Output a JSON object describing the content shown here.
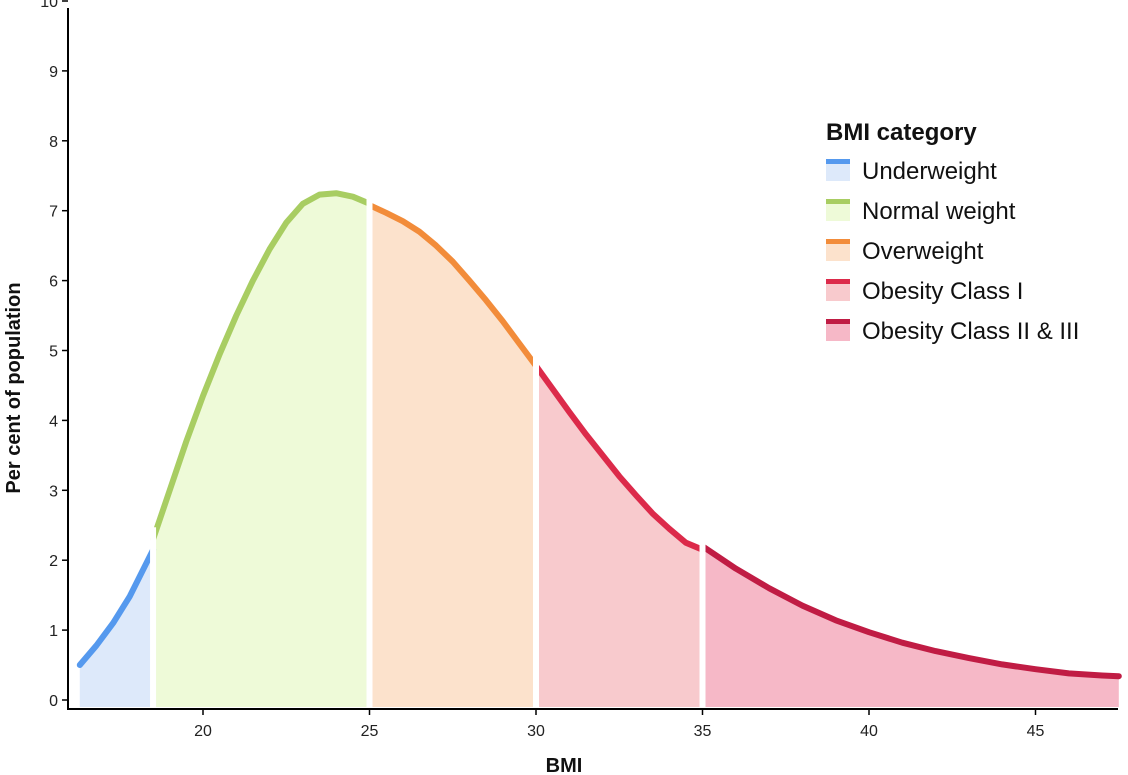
{
  "chart_data": {
    "type": "area",
    "title": "",
    "xlabel": "BMI",
    "ylabel": "Per cent of population",
    "xlim": [
      15.9,
      47.5
    ],
    "ylim": [
      0,
      10
    ],
    "xticks": [
      20,
      25,
      30,
      35,
      40,
      45
    ],
    "yticks": [
      0,
      1,
      2,
      3,
      4,
      5,
      6,
      7,
      8,
      9,
      10
    ],
    "legend_title": "BMI category",
    "legend_position": "top-right",
    "series": [
      {
        "name": "Underweight",
        "line_color": "#5599ee",
        "fill_color": "#dde9fa",
        "x": [
          16.3,
          16.8,
          17.3,
          17.8,
          18.5
        ],
        "y": [
          0.5,
          0.78,
          1.1,
          1.48,
          2.15
        ]
      },
      {
        "name": "Normal weight",
        "line_color": "#a8cd62",
        "fill_color": "#eefad8",
        "x": [
          18.5,
          19.0,
          19.5,
          20.0,
          20.5,
          21.0,
          21.5,
          22.0,
          22.5,
          23.0,
          23.5,
          24.0,
          24.5,
          25.0
        ],
        "y": [
          2.3,
          3.0,
          3.7,
          4.35,
          4.95,
          5.5,
          6.0,
          6.45,
          6.83,
          7.1,
          7.23,
          7.25,
          7.2,
          7.1
        ]
      },
      {
        "name": "Overweight",
        "line_color": "#f28c3a",
        "fill_color": "#fce2cc",
        "x": [
          25.0,
          25.5,
          26.0,
          26.5,
          27.0,
          27.5,
          28.0,
          28.5,
          29.0,
          29.5,
          30.0
        ],
        "y": [
          7.08,
          6.97,
          6.85,
          6.7,
          6.5,
          6.27,
          6.0,
          5.72,
          5.42,
          5.1,
          4.78
        ]
      },
      {
        "name": "Obesity Class I",
        "line_color": "#dc2a4a",
        "fill_color": "#f8cacd",
        "x": [
          30.0,
          30.5,
          31.0,
          31.5,
          32.0,
          32.5,
          33.0,
          33.5,
          34.0,
          34.5,
          35.0
        ],
        "y": [
          4.78,
          4.45,
          4.12,
          3.8,
          3.5,
          3.2,
          2.93,
          2.67,
          2.45,
          2.25,
          2.15
        ]
      },
      {
        "name": "Obesity Class II & III",
        "line_color": "#c01c44",
        "fill_color": "#f6b8c7",
        "x": [
          35.0,
          36.0,
          37.0,
          38.0,
          39.0,
          40.0,
          41.0,
          42.0,
          43.0,
          44.0,
          45.0,
          46.0,
          47.0,
          47.5
        ],
        "y": [
          2.2,
          1.88,
          1.6,
          1.35,
          1.14,
          0.97,
          0.82,
          0.7,
          0.6,
          0.51,
          0.44,
          0.38,
          0.35,
          0.34
        ]
      }
    ]
  }
}
